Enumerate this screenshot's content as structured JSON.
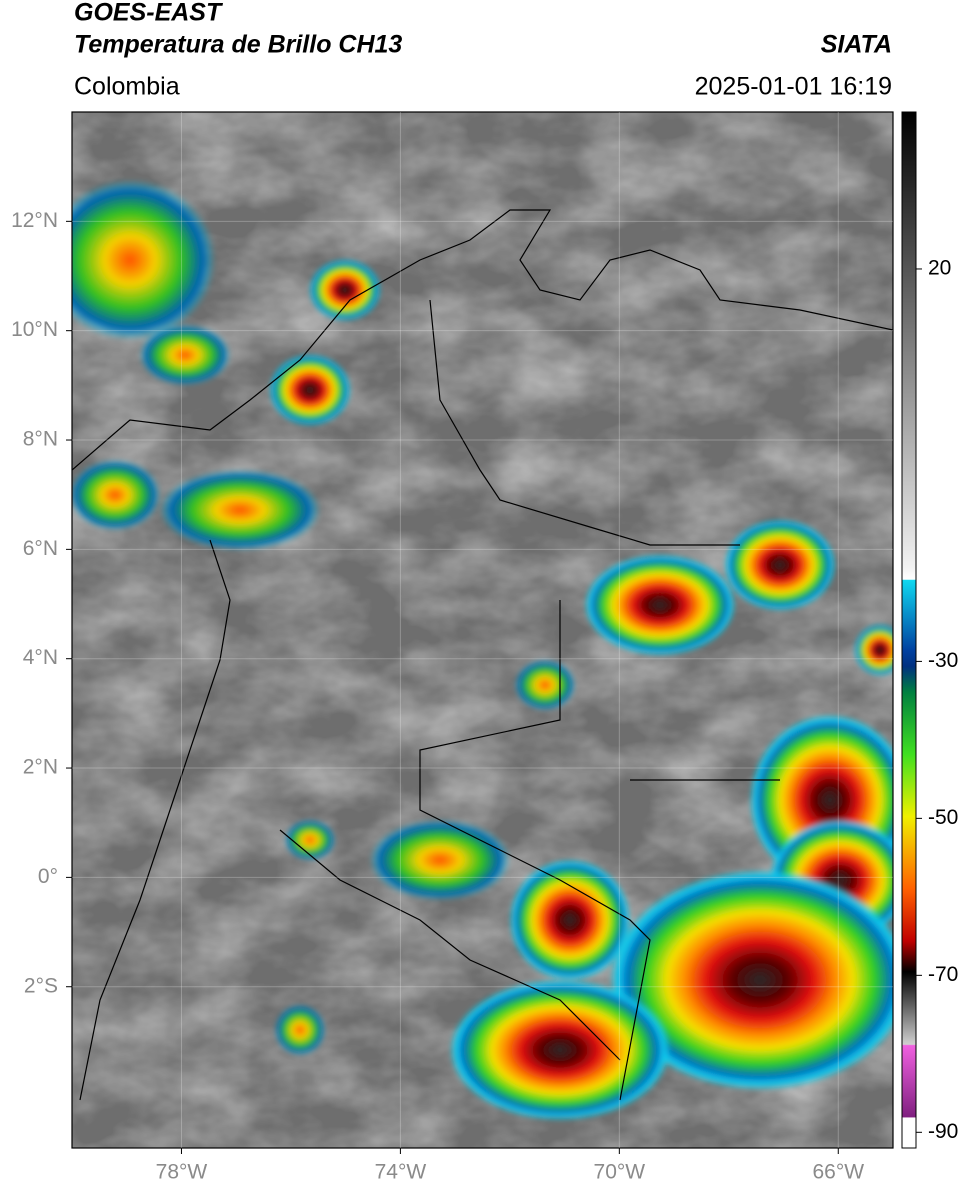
{
  "header": {
    "title": "GOES-EAST",
    "subtitle": "Temperatura de Brillo CH13",
    "region": "Colombia",
    "source": "SIATA",
    "datetime": "2025-01-01 16:19"
  },
  "map": {
    "lonlim": [
      -80,
      -65
    ],
    "latlim": [
      -4.95,
      14
    ],
    "lat_ticks": [
      {
        "value": 12,
        "label": "12°N"
      },
      {
        "value": 10,
        "label": "10°N"
      },
      {
        "value": 8,
        "label": "8°N"
      },
      {
        "value": 6,
        "label": "6°N"
      },
      {
        "value": 4,
        "label": "4°N"
      },
      {
        "value": 2,
        "label": "2°N"
      },
      {
        "value": 0,
        "label": "0°"
      },
      {
        "value": -2,
        "label": "2°S"
      }
    ],
    "lon_ticks": [
      {
        "value": -78,
        "label": "78°W"
      },
      {
        "value": -74,
        "label": "74°W"
      },
      {
        "value": -70,
        "label": "70°W"
      },
      {
        "value": -66,
        "label": "66°W"
      }
    ]
  },
  "colorbar": {
    "range": [
      -92,
      40
    ],
    "ticks": [
      20,
      -30,
      -50,
      -70,
      -90
    ]
  }
}
